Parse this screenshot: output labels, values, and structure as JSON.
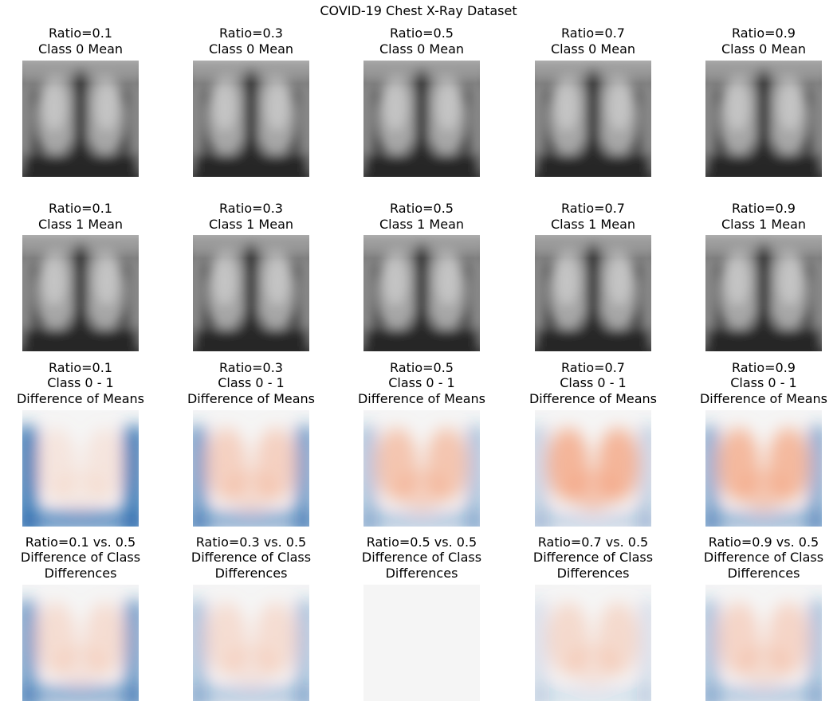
{
  "suptitle": "COVID-19 Chest X-Ray Dataset",
  "colors": {
    "positive": "#f4a582",
    "negative": "#2166ac",
    "neutral": "#f5f5f5"
  },
  "rows": [
    {
      "kind": "xray",
      "panels": [
        {
          "title_lines": [
            "Ratio=0.1",
            "Class 0 Mean"
          ]
        },
        {
          "title_lines": [
            "Ratio=0.3",
            "Class 0 Mean"
          ]
        },
        {
          "title_lines": [
            "Ratio=0.5",
            "Class 0 Mean"
          ]
        },
        {
          "title_lines": [
            "Ratio=0.7",
            "Class 0 Mean"
          ]
        },
        {
          "title_lines": [
            "Ratio=0.9",
            "Class 0 Mean"
          ]
        }
      ]
    },
    {
      "kind": "xray",
      "panels": [
        {
          "title_lines": [
            "Ratio=0.1",
            "Class 1 Mean"
          ]
        },
        {
          "title_lines": [
            "Ratio=0.3",
            "Class 1 Mean"
          ]
        },
        {
          "title_lines": [
            "Ratio=0.5",
            "Class 1 Mean"
          ]
        },
        {
          "title_lines": [
            "Ratio=0.7",
            "Class 1 Mean"
          ]
        },
        {
          "title_lines": [
            "Ratio=0.9",
            "Class 1 Mean"
          ]
        }
      ]
    },
    {
      "kind": "diff",
      "panels": [
        {
          "title_lines": [
            "Ratio=0.1",
            "Class 0 - 1",
            "Difference of Means"
          ],
          "red": 0.2,
          "blue": 0.85
        },
        {
          "title_lines": [
            "Ratio=0.3",
            "Class 0 - 1",
            "Difference of Means"
          ],
          "red": 0.45,
          "blue": 0.6
        },
        {
          "title_lines": [
            "Ratio=0.5",
            "Class 0 - 1",
            "Difference of Means"
          ],
          "red": 0.6,
          "blue": 0.35
        },
        {
          "title_lines": [
            "Ratio=0.7",
            "Class 0 - 1",
            "Difference of Means"
          ],
          "red": 0.8,
          "blue": 0.25
        },
        {
          "title_lines": [
            "Ratio=0.9",
            "Class 0 - 1",
            "Difference of Means"
          ],
          "red": 0.75,
          "blue": 0.5
        }
      ]
    },
    {
      "kind": "diff",
      "panels": [
        {
          "title_lines": [
            "Ratio=0.1 vs. 0.5",
            "Difference of Class",
            "Differences"
          ],
          "red": 0.3,
          "blue": 0.6
        },
        {
          "title_lines": [
            "Ratio=0.3 vs. 0.5",
            "Difference of Class",
            "Differences"
          ],
          "red": 0.3,
          "blue": 0.35
        },
        {
          "title_lines": [
            "Ratio=0.5 vs. 0.5",
            "Difference of Class",
            "Differences"
          ],
          "red": 0,
          "blue": 0
        },
        {
          "title_lines": [
            "Ratio=0.7 vs. 0.5",
            "Difference of Class",
            "Differences"
          ],
          "red": 0.35,
          "blue": 0.15
        },
        {
          "title_lines": [
            "Ratio=0.9 vs. 0.5",
            "Difference of Class",
            "Differences"
          ],
          "red": 0.4,
          "blue": 0.35
        }
      ]
    }
  ]
}
